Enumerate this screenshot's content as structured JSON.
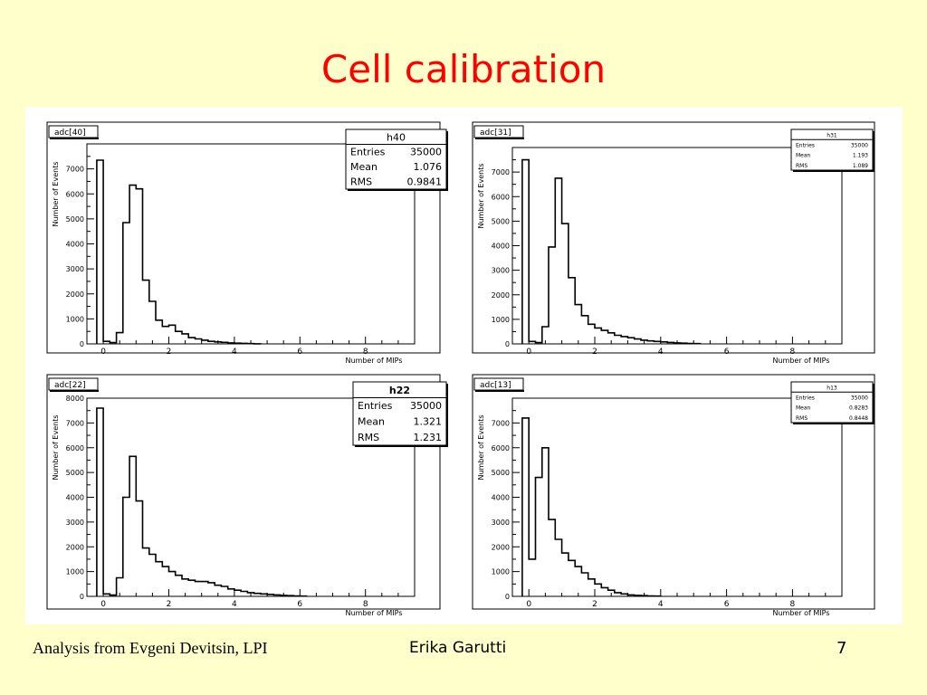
{
  "slide": {
    "title": "Cell calibration",
    "footer_left": "Analysis from Evgeni Devitsin, LPI",
    "footer_center": "Erika Garutti",
    "page_number": "7"
  },
  "chart_data": [
    {
      "type": "bar",
      "panel_label": "adc[40]",
      "stats": {
        "name": "h40",
        "entries_label": "Entries",
        "entries": "35000",
        "mean_label": "Mean",
        "mean": "1.076",
        "rms_label": "RMS",
        "rms": "0.9841"
      },
      "xlabel": "Number of MIPs",
      "ylabel": "Number of Events",
      "xlim": [
        -0.5,
        9.5
      ],
      "ylim": [
        0,
        8000
      ],
      "xticks": [
        "0",
        "2",
        "4",
        "6",
        "8"
      ],
      "yticks": [
        "0",
        "1000",
        "2000",
        "3000",
        "4000",
        "5000",
        "6000",
        "7000"
      ],
      "bin_width": 0.2,
      "bin_start": -0.2,
      "values": [
        7350,
        100,
        50,
        450,
        4850,
        6350,
        6200,
        2550,
        1700,
        950,
        700,
        750,
        500,
        400,
        250,
        200,
        150,
        100,
        80,
        60,
        40,
        30,
        20,
        10,
        5
      ]
    },
    {
      "type": "bar",
      "panel_label": "adc[31]",
      "stats": {
        "name": "h31",
        "entries_label": "Entries",
        "entries": "35000",
        "mean_label": "Mean",
        "mean": "1.193",
        "rms_label": "RMS",
        "rms": "1.089"
      },
      "xlabel": "Number of MIPs",
      "ylabel": "Number of Events",
      "xlim": [
        -0.5,
        9.5
      ],
      "ylim": [
        0,
        8000
      ],
      "xticks": [
        "0",
        "2",
        "4",
        "6",
        "8"
      ],
      "yticks": [
        "0",
        "1000",
        "2000",
        "3000",
        "4000",
        "5000",
        "6000",
        "7000"
      ],
      "bin_width": 0.2,
      "bin_start": -0.2,
      "values": [
        7500,
        100,
        50,
        700,
        3950,
        6750,
        4900,
        2700,
        1600,
        1150,
        800,
        650,
        550,
        450,
        350,
        300,
        250,
        200,
        150,
        120,
        100,
        80,
        60,
        40,
        30,
        20,
        10
      ]
    },
    {
      "type": "bar",
      "panel_label": "adc[22]",
      "stats": {
        "name": "h22",
        "entries_label": "Entries",
        "entries": "35000",
        "mean_label": "Mean",
        "mean": "1.321",
        "rms_label": "RMS",
        "rms": "1.231"
      },
      "xlabel": "Number of MIPs",
      "ylabel": "Number of Events",
      "xlim": [
        -0.5,
        9.5
      ],
      "ylim": [
        0,
        8000
      ],
      "xticks": [
        "0",
        "2",
        "4",
        "6",
        "8"
      ],
      "yticks": [
        "0",
        "1000",
        "2000",
        "3000",
        "4000",
        "5000",
        "6000",
        "7000",
        "8000"
      ],
      "bin_width": 0.2,
      "bin_start": -0.2,
      "values": [
        7600,
        100,
        50,
        750,
        4000,
        5650,
        3850,
        1950,
        1700,
        1400,
        1200,
        1000,
        850,
        700,
        650,
        600,
        600,
        550,
        450,
        400,
        300,
        250,
        200,
        150,
        120,
        100,
        80,
        60,
        40,
        30,
        20,
        10
      ]
    },
    {
      "type": "bar",
      "panel_label": "adc[13]",
      "stats": {
        "name": "h13",
        "entries_label": "Entries",
        "entries": "35000",
        "mean_label": "Mean",
        "mean": "0.8283",
        "rms_label": "RMS",
        "rms": "0.8448"
      },
      "xlabel": "Number of MIPs",
      "ylabel": "Number of Events",
      "xlim": [
        -0.5,
        9.5
      ],
      "ylim": [
        0,
        8000
      ],
      "xticks": [
        "0",
        "2",
        "4",
        "6",
        "8"
      ],
      "yticks": [
        "0",
        "1000",
        "2000",
        "3000",
        "4000",
        "5000",
        "6000",
        "7000"
      ],
      "bin_width": 0.2,
      "bin_start": -0.2,
      "values": [
        7200,
        1500,
        4800,
        6000,
        3100,
        2300,
        1750,
        1450,
        1200,
        950,
        700,
        500,
        350,
        250,
        150,
        100,
        60,
        40,
        30,
        20,
        10
      ]
    }
  ]
}
